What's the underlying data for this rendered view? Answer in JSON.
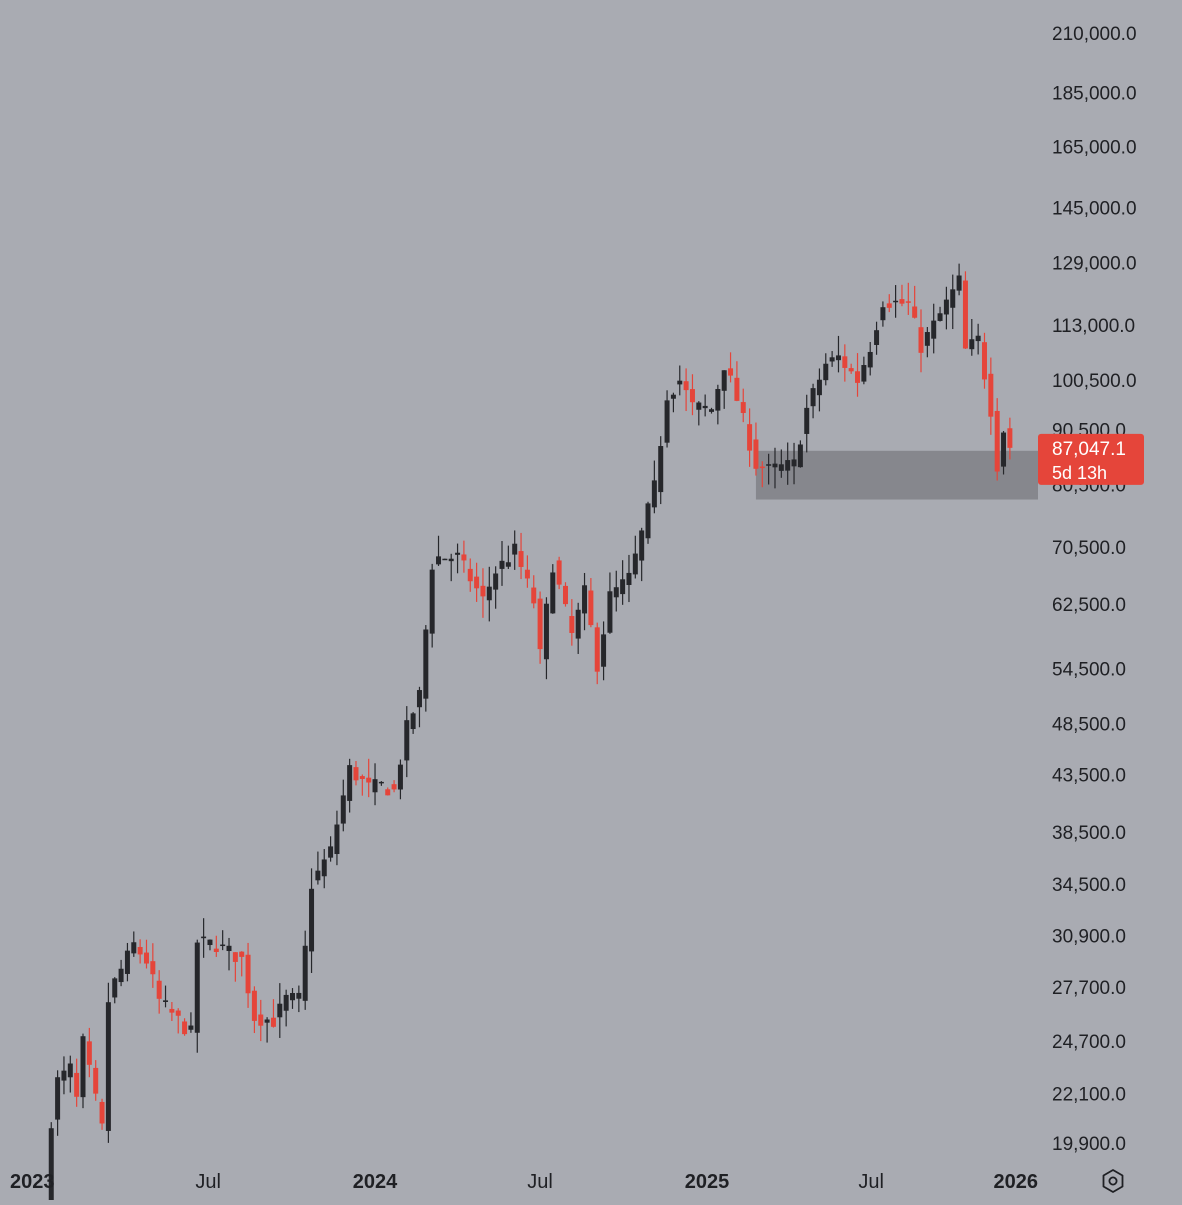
{
  "colors": {
    "background": "#a9abb2",
    "up": "#26272b",
    "down": "#e5453a",
    "zone": "#86878d",
    "price_label_bg": "#e5453a",
    "axis_text": "#1f2024"
  },
  "settings_icon": "gear-icon",
  "chart_data": {
    "type": "candlestick",
    "interval": "weekly",
    "log_scale": true,
    "grid": false,
    "ylim": [
      19000,
      220000
    ],
    "xlim": [
      "2023-01-01",
      "2026-01-01"
    ],
    "y_ticks": [
      {
        "value": 210000,
        "label": "210,000.0"
      },
      {
        "value": 185000,
        "label": "185,000.0"
      },
      {
        "value": 165000,
        "label": "165,000.0"
      },
      {
        "value": 145000,
        "label": "145,000.0"
      },
      {
        "value": 129000,
        "label": "129,000.0"
      },
      {
        "value": 113000,
        "label": "113,000.0"
      },
      {
        "value": 100500,
        "label": "100,500.0"
      },
      {
        "value": 90500,
        "label": "90,500.0"
      },
      {
        "value": 80500,
        "label": "80,500.0"
      },
      {
        "value": 70500,
        "label": "70,500.0"
      },
      {
        "value": 62500,
        "label": "62,500.0"
      },
      {
        "value": 54500,
        "label": "54,500.0"
      },
      {
        "value": 48500,
        "label": "48,500.0"
      },
      {
        "value": 43500,
        "label": "43,500.0"
      },
      {
        "value": 38500,
        "label": "38,500.0"
      },
      {
        "value": 34500,
        "label": "34,500.0"
      },
      {
        "value": 30900,
        "label": "30,900.0"
      },
      {
        "value": 27700,
        "label": "27,700.0"
      },
      {
        "value": 24700,
        "label": "24,700.0"
      },
      {
        "value": 22100,
        "label": "22,100.0"
      },
      {
        "value": 19900,
        "label": "19,900.0"
      }
    ],
    "x_ticks": [
      {
        "date": "2023-01-01",
        "label": "2023",
        "bold": true
      },
      {
        "date": "2023-07-01",
        "label": "Jul",
        "bold": false
      },
      {
        "date": "2024-01-01",
        "label": "2024",
        "bold": true
      },
      {
        "date": "2024-07-01",
        "label": "Jul",
        "bold": false
      },
      {
        "date": "2025-01-01",
        "label": "2025",
        "bold": true
      },
      {
        "date": "2025-07-01",
        "label": "Jul",
        "bold": false
      },
      {
        "date": "2026-01-01",
        "label": "2026",
        "bold": true
      }
    ],
    "last_price": {
      "label": "87,047.1",
      "timer": "5d 13h",
      "value": 87047.1
    },
    "zone": {
      "x_start": "2025-02-24",
      "x_end": "2026-01-01",
      "y_low": 78000,
      "y_high": 86500
    },
    "anchors": [
      [
        "2023-01-02",
        16600
      ],
      [
        "2023-01-09",
        20900
      ],
      [
        "2023-01-16",
        22700
      ],
      [
        "2023-01-30",
        23300
      ],
      [
        "2023-02-06",
        21800
      ],
      [
        "2023-02-13",
        24600
      ],
      [
        "2023-03-06",
        20500
      ],
      [
        "2023-03-13",
        26900
      ],
      [
        "2023-03-20",
        28000
      ],
      [
        "2023-04-10",
        30300
      ],
      [
        "2023-04-24",
        29300
      ],
      [
        "2023-05-08",
        26900
      ],
      [
        "2023-06-12",
        25100
      ],
      [
        "2023-06-19",
        30500
      ],
      [
        "2023-07-10",
        30300
      ],
      [
        "2023-08-07",
        29400
      ],
      [
        "2023-08-21",
        26000
      ],
      [
        "2023-09-11",
        25800
      ],
      [
        "2023-09-25",
        27000
      ],
      [
        "2023-10-09",
        27000
      ],
      [
        "2023-10-16",
        30000
      ],
      [
        "2023-10-23",
        34500
      ],
      [
        "2023-11-13",
        37000
      ],
      [
        "2023-12-04",
        44000
      ],
      [
        "2023-12-25",
        42300
      ],
      [
        "2024-01-08",
        42500
      ],
      [
        "2024-01-22",
        42000
      ],
      [
        "2024-02-05",
        48000
      ],
      [
        "2024-02-19",
        51500
      ],
      [
        "2024-03-04",
        68000
      ],
      [
        "2024-03-11",
        69000
      ],
      [
        "2024-04-01",
        69000
      ],
      [
        "2024-04-29",
        63000
      ],
      [
        "2024-05-13",
        67000
      ],
      [
        "2024-06-03",
        70000
      ],
      [
        "2024-06-24",
        62800
      ],
      [
        "2024-07-01",
        56000
      ],
      [
        "2024-07-15",
        68000
      ],
      [
        "2024-08-05",
        58500
      ],
      [
        "2024-08-19",
        64000
      ],
      [
        "2024-09-02",
        55000
      ],
      [
        "2024-09-16",
        63500
      ],
      [
        "2024-10-07",
        66000
      ],
      [
        "2024-10-14",
        69000
      ],
      [
        "2024-11-04",
        80000
      ],
      [
        "2024-11-18",
        97500
      ],
      [
        "2024-12-02",
        100500
      ],
      [
        "2024-12-16",
        95000
      ],
      [
        "2025-01-06",
        94500
      ],
      [
        "2025-01-20",
        104000
      ],
      [
        "2025-02-03",
        96500
      ],
      [
        "2025-02-24",
        84000
      ],
      [
        "2025-03-10",
        83000
      ],
      [
        "2025-04-07",
        84000
      ],
      [
        "2025-04-21",
        94500
      ],
      [
        "2025-05-12",
        104000
      ],
      [
        "2025-05-26",
        105500
      ],
      [
        "2025-06-16",
        100500
      ],
      [
        "2025-06-30",
        108000
      ],
      [
        "2025-07-14",
        119000
      ],
      [
        "2025-08-11",
        118000
      ],
      [
        "2025-08-25",
        108000
      ],
      [
        "2025-09-15",
        115500
      ],
      [
        "2025-10-06",
        124000
      ],
      [
        "2025-10-13",
        107000
      ],
      [
        "2025-10-27",
        109500
      ],
      [
        "2025-11-10",
        94500
      ],
      [
        "2025-11-17",
        84000
      ],
      [
        "2025-11-24",
        90500
      ],
      [
        "2025-12-01",
        87047.1
      ]
    ]
  }
}
